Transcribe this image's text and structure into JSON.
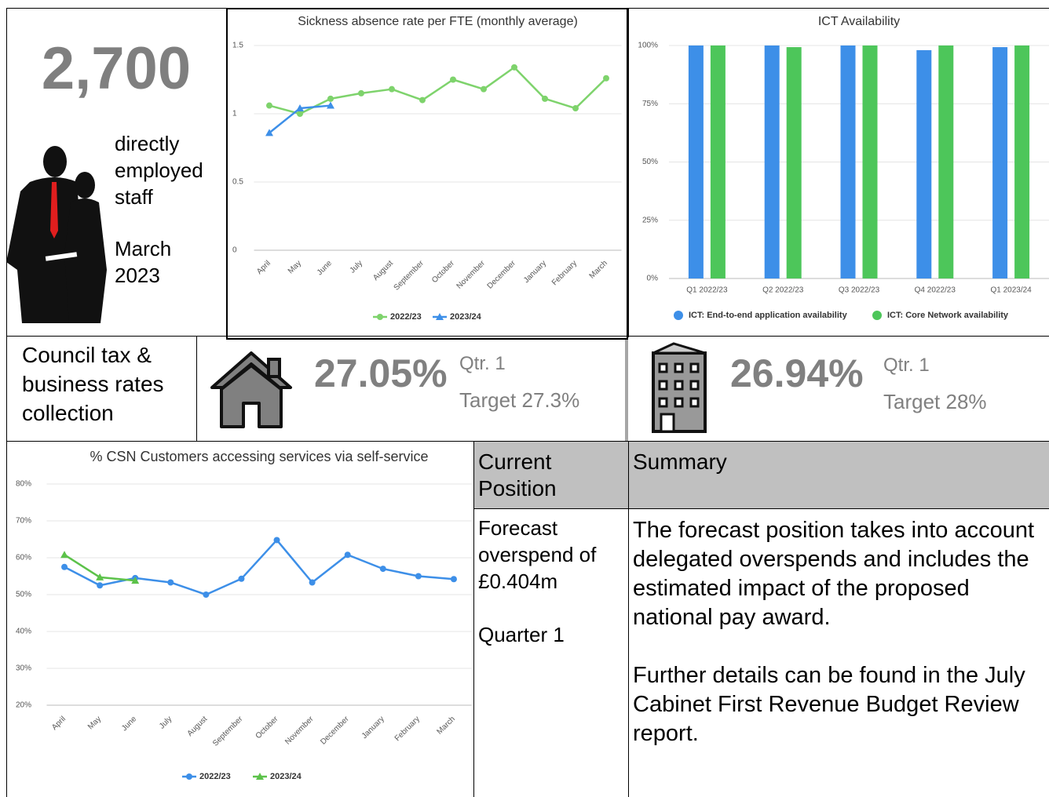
{
  "staff": {
    "count": "2,700",
    "description": "directly employed staff",
    "date": "March 2023"
  },
  "collection": {
    "label": "Council tax & business rates collection",
    "council_tax": {
      "value": "27.05%",
      "period": "Qtr. 1",
      "target": "Target 27.3%"
    },
    "business_rates": {
      "value": "26.94%",
      "period": "Qtr. 1",
      "target": "Target 28%"
    }
  },
  "table": {
    "headers": [
      "Current Position",
      "Summary"
    ],
    "rows": [
      [
        [
          "Forecast overspend of £0.404m",
          "Quarter 1"
        ],
        [
          "The forecast position takes into account delegated overspends and includes the estimated impact of the proposed national pay award.",
          "Further details can be found in the July Cabinet First Revenue Budget Review report."
        ]
      ]
    ]
  },
  "chart_data": [
    {
      "type": "line",
      "title": "Sickness absence rate per FTE (monthly average)",
      "categories": [
        "April",
        "May",
        "June",
        "July",
        "August",
        "September",
        "October",
        "November",
        "December",
        "January",
        "February",
        "March"
      ],
      "series": [
        {
          "name": "2022/23",
          "color": "#7ed36c",
          "marker": "circle",
          "values": [
            1.06,
            1.0,
            1.11,
            1.15,
            1.18,
            1.1,
            1.25,
            1.18,
            1.34,
            1.11,
            1.04,
            1.26
          ]
        },
        {
          "name": "2023/24",
          "color": "#3d8fe8",
          "marker": "triangle",
          "values": [
            0.86,
            1.04,
            1.06,
            null,
            null,
            null,
            null,
            null,
            null,
            null,
            null,
            null
          ]
        }
      ],
      "ylim": [
        0,
        1.5
      ],
      "yticks": [
        0,
        0.5,
        1,
        1.5
      ],
      "grid": true,
      "legend": "bottom"
    },
    {
      "type": "bar",
      "title": "ICT Availability",
      "categories": [
        "Q1 2022/23",
        "Q2 2022/23",
        "Q3 2022/23",
        "Q4 2022/23",
        "Q1 2023/24"
      ],
      "series": [
        {
          "name": "ICT: End-to-end application availability",
          "color": "#3d8fe8",
          "values": [
            100,
            100,
            100,
            98,
            99.3
          ]
        },
        {
          "name": "ICT: Core Network availability",
          "color": "#4dc65a",
          "values": [
            100,
            99.3,
            100,
            100,
            100
          ]
        }
      ],
      "ylim": [
        0,
        100
      ],
      "yticks": [
        {
          "value": 0,
          "label": "0%"
        },
        {
          "value": 25,
          "label": "25%"
        },
        {
          "value": 50,
          "label": "50%"
        },
        {
          "value": 75,
          "label": "75%"
        },
        {
          "value": 100,
          "label": "100%"
        }
      ],
      "grid": true,
      "legend": "bottom"
    },
    {
      "type": "line",
      "title": "% CSN Customers accessing services via self-service",
      "categories": [
        "April",
        "May",
        "June",
        "July",
        "August",
        "September",
        "October",
        "November",
        "December",
        "January",
        "February",
        "March"
      ],
      "series": [
        {
          "name": "2022/23",
          "color": "#3d8fe8",
          "marker": "circle",
          "values": [
            57.5,
            52.5,
            54.5,
            53.3,
            50,
            54.3,
            64.8,
            53.3,
            60.8,
            57,
            55,
            54.2
          ]
        },
        {
          "name": "2023/24",
          "color": "#5cc24a",
          "marker": "triangle",
          "values": [
            60.8,
            54.7,
            53.8,
            null,
            null,
            null,
            null,
            null,
            null,
            null,
            null,
            null
          ]
        }
      ],
      "ylim": [
        20,
        80
      ],
      "yticks": [
        {
          "value": 20,
          "label": "20%"
        },
        {
          "value": 30,
          "label": "30%"
        },
        {
          "value": 40,
          "label": "40%"
        },
        {
          "value": 50,
          "label": "50%"
        },
        {
          "value": 60,
          "label": "60%"
        },
        {
          "value": 70,
          "label": "70%"
        },
        {
          "value": 80,
          "label": "80%"
        }
      ],
      "grid": true,
      "legend": "bottom"
    }
  ]
}
